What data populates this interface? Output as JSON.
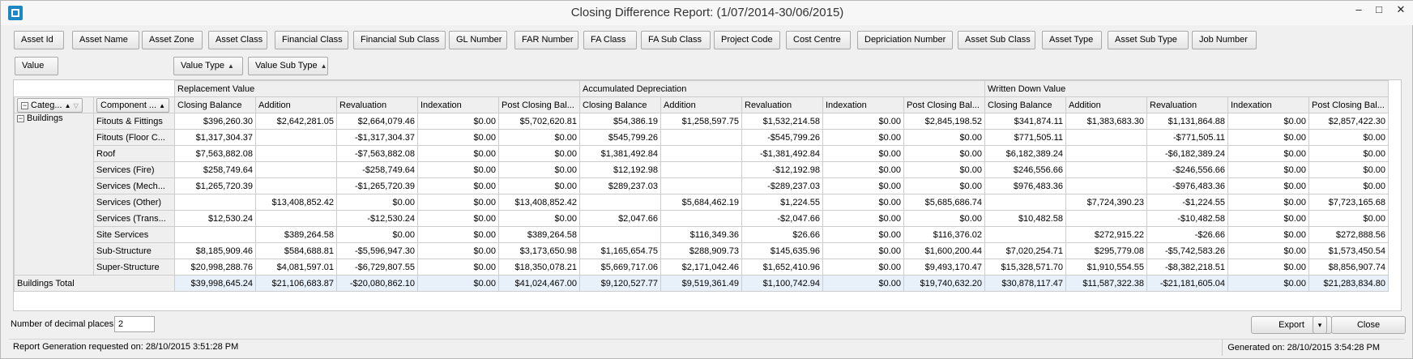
{
  "window": {
    "title": "Closing Difference Report: (1/07/2014-30/06/2015)",
    "controls": [
      "–",
      "□",
      "✕"
    ]
  },
  "filter_fields": [
    "Asset Id",
    "Asset Name",
    "Asset Zone",
    "Asset Class",
    "Financial Class",
    "Financial Sub Class",
    "GL Number",
    "FAR Number",
    "FA Class",
    "FA Sub Class",
    "Project Code",
    "Cost Centre",
    "Depriciation Number",
    "Asset Sub Class",
    "Asset Type",
    "Asset Sub Type",
    "Job Number"
  ],
  "data_field": "Value",
  "column_fields": [
    "Value Type",
    "Value Sub Type"
  ],
  "row_fields": [
    "Categ...",
    "Component ..."
  ],
  "column_groups": [
    "Replacement Value",
    "Accumulated Depreciation",
    "Written Down Value"
  ],
  "sub_columns": [
    "Closing Balance",
    "Addition",
    "Revaluation",
    "Indexation",
    "Post Closing Bal..."
  ],
  "category": "Buildings",
  "rows": [
    {
      "label": "Fitouts & Fittings",
      "values": [
        "$396,260.30",
        "$2,642,281.05",
        "$2,664,079.46",
        "$0.00",
        "$5,702,620.81",
        "$54,386.19",
        "$1,258,597.75",
        "$1,532,214.58",
        "$0.00",
        "$2,845,198.52",
        "$341,874.11",
        "$1,383,683.30",
        "$1,131,864.88",
        "$0.00",
        "$2,857,422.30"
      ]
    },
    {
      "label": "Fitouts (Floor C...",
      "values": [
        "$1,317,304.37",
        "",
        "-$1,317,304.37",
        "$0.00",
        "$0.00",
        "$545,799.26",
        "",
        "-$545,799.26",
        "$0.00",
        "$0.00",
        "$771,505.11",
        "",
        "-$771,505.11",
        "$0.00",
        "$0.00"
      ]
    },
    {
      "label": "Roof",
      "values": [
        "$7,563,882.08",
        "",
        "-$7,563,882.08",
        "$0.00",
        "$0.00",
        "$1,381,492.84",
        "",
        "-$1,381,492.84",
        "$0.00",
        "$0.00",
        "$6,182,389.24",
        "",
        "-$6,182,389.24",
        "$0.00",
        "$0.00"
      ]
    },
    {
      "label": "Services (Fire)",
      "values": [
        "$258,749.64",
        "",
        "-$258,749.64",
        "$0.00",
        "$0.00",
        "$12,192.98",
        "",
        "-$12,192.98",
        "$0.00",
        "$0.00",
        "$246,556.66",
        "",
        "-$246,556.66",
        "$0.00",
        "$0.00"
      ]
    },
    {
      "label": "Services (Mech...",
      "values": [
        "$1,265,720.39",
        "",
        "-$1,265,720.39",
        "$0.00",
        "$0.00",
        "$289,237.03",
        "",
        "-$289,237.03",
        "$0.00",
        "$0.00",
        "$976,483.36",
        "",
        "-$976,483.36",
        "$0.00",
        "$0.00"
      ]
    },
    {
      "label": "Services (Other)",
      "values": [
        "",
        "$13,408,852.42",
        "$0.00",
        "$0.00",
        "$13,408,852.42",
        "",
        "$5,684,462.19",
        "$1,224.55",
        "$0.00",
        "$5,685,686.74",
        "",
        "$7,724,390.23",
        "-$1,224.55",
        "$0.00",
        "$7,723,165.68"
      ]
    },
    {
      "label": "Services (Trans...",
      "values": [
        "$12,530.24",
        "",
        "-$12,530.24",
        "$0.00",
        "$0.00",
        "$2,047.66",
        "",
        "-$2,047.66",
        "$0.00",
        "$0.00",
        "$10,482.58",
        "",
        "-$10,482.58",
        "$0.00",
        "$0.00"
      ]
    },
    {
      "label": "Site Services",
      "values": [
        "",
        "$389,264.58",
        "$0.00",
        "$0.00",
        "$389,264.58",
        "",
        "$116,349.36",
        "$26.66",
        "$0.00",
        "$116,376.02",
        "",
        "$272,915.22",
        "-$26.66",
        "$0.00",
        "$272,888.56"
      ]
    },
    {
      "label": "Sub-Structure",
      "values": [
        "$8,185,909.46",
        "$584,688.81",
        "-$5,596,947.30",
        "$0.00",
        "$3,173,650.98",
        "$1,165,654.75",
        "$288,909.73",
        "$145,635.96",
        "$0.00",
        "$1,600,200.44",
        "$7,020,254.71",
        "$295,779.08",
        "-$5,742,583.26",
        "$0.00",
        "$1,573,450.54"
      ]
    },
    {
      "label": "Super-Structure",
      "values": [
        "$20,998,288.76",
        "$4,081,597.01",
        "-$6,729,807.55",
        "$0.00",
        "$18,350,078.21",
        "$5,669,717.06",
        "$2,171,042.46",
        "$1,652,410.96",
        "$0.00",
        "$9,493,170.47",
        "$15,328,571.70",
        "$1,910,554.55",
        "-$8,382,218.51",
        "$0.00",
        "$8,856,907.74"
      ]
    }
  ],
  "total": {
    "label": "Buildings Total",
    "values": [
      "$39,998,645.24",
      "$21,106,683.87",
      "-$20,080,862.10",
      "$0.00",
      "$41,024,467.00",
      "$9,120,527.77",
      "$9,519,361.49",
      "$1,100,742.94",
      "$0.00",
      "$19,740,632.20",
      "$30,878,117.47",
      "$11,587,322.38",
      "-$21,181,605.04",
      "$0.00",
      "$21,283,834.80"
    ]
  },
  "footer": {
    "decimal_label": "Number of decimal places:",
    "decimal_value": "2",
    "export_label": "Export",
    "close_label": "Close",
    "status_left": "Report Generation requested on: 28/10/2015 3:51:28 PM",
    "status_right": "Generated on: 28/10/2015 3:54:28 PM"
  }
}
